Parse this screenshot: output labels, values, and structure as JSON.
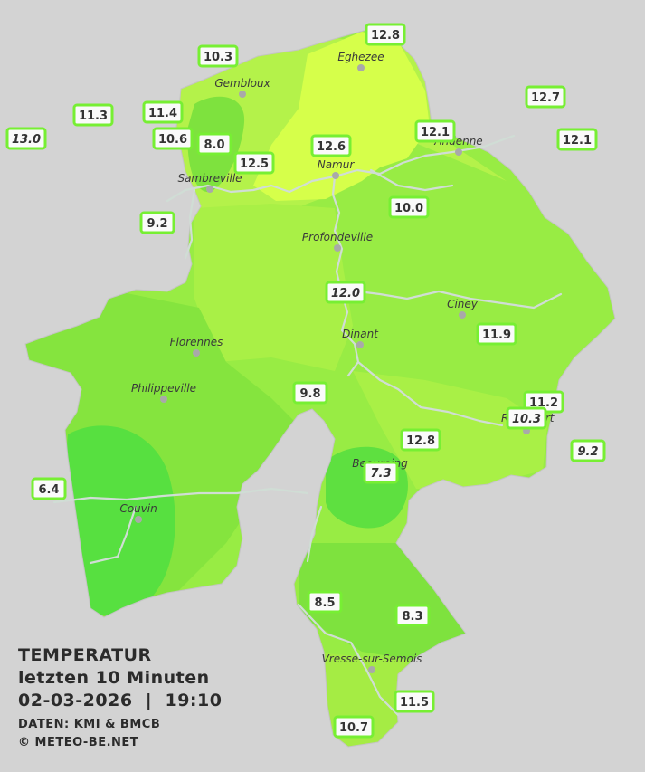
{
  "legend": {
    "title": "TEMPERATUR",
    "period": "letzten 10 Minuten",
    "date": "02-03-2026",
    "separator": "|",
    "time": "19:10",
    "source": "DATEN: KMI & BMCB",
    "copyright": "© METEO-BE.NET"
  },
  "colors": {
    "background": "#d3d3d3",
    "warm_yellow": "#d6ff4a",
    "light_green": "#b4f24a",
    "mid_green": "#98ec44",
    "cool_green": "#7ee23e",
    "cold_green": "#57e040",
    "river": "#c8d8d0",
    "station_border": "#77ef33"
  },
  "cities": [
    {
      "name": "Eghezee"
    },
    {
      "name": "Gembloux"
    },
    {
      "name": "Andenne"
    },
    {
      "name": "Namur"
    },
    {
      "name": "Sambreville"
    },
    {
      "name": "Profondeville"
    },
    {
      "name": "Ciney"
    },
    {
      "name": "Florennes"
    },
    {
      "name": "Dinant"
    },
    {
      "name": "Philippeville"
    },
    {
      "name": "Rochefort"
    },
    {
      "name": "Beauraing"
    },
    {
      "name": "Couvin"
    },
    {
      "name": "Vresse-sur-Semois"
    }
  ],
  "stations": [
    {
      "value": "12.8",
      "italic": false
    },
    {
      "value": "10.3",
      "italic": false
    },
    {
      "value": "12.7",
      "italic": false
    },
    {
      "value": "11.3",
      "italic": false
    },
    {
      "value": "11.4",
      "italic": false
    },
    {
      "value": "13.0",
      "italic": true
    },
    {
      "value": "10.6",
      "italic": false
    },
    {
      "value": "8.0",
      "italic": false
    },
    {
      "value": "12.1",
      "italic": false
    },
    {
      "value": "12.1",
      "italic": false
    },
    {
      "value": "12.6",
      "italic": false
    },
    {
      "value": "12.5",
      "italic": false
    },
    {
      "value": "10.0",
      "italic": false
    },
    {
      "value": "9.2",
      "italic": false
    },
    {
      "value": "12.0",
      "italic": true
    },
    {
      "value": "11.9",
      "italic": false
    },
    {
      "value": "9.8",
      "italic": false
    },
    {
      "value": "11.2",
      "italic": false
    },
    {
      "value": "10.3",
      "italic": true
    },
    {
      "value": "12.8",
      "italic": false
    },
    {
      "value": "9.2",
      "italic": true
    },
    {
      "value": "7.3",
      "italic": true
    },
    {
      "value": "6.4",
      "italic": false
    },
    {
      "value": "8.5",
      "italic": false
    },
    {
      "value": "8.3",
      "italic": false
    },
    {
      "value": "11.5",
      "italic": false
    },
    {
      "value": "10.7",
      "italic": false
    }
  ]
}
